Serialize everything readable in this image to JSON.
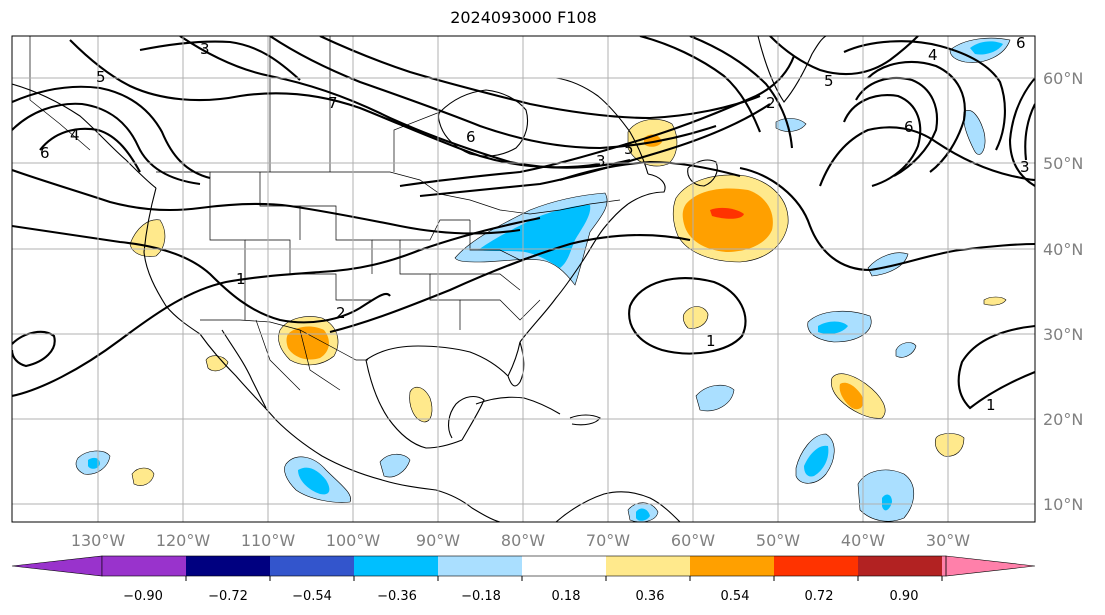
{
  "title": "2024093000 F108",
  "map": {
    "lon_labels": [
      "130°W",
      "120°W",
      "110°W",
      "100°W",
      "90°W",
      "80°W",
      "70°W",
      "60°W",
      "50°W",
      "40°W",
      "30°W"
    ],
    "lat_labels": [
      "60°N",
      "50°N",
      "40°N",
      "30°N",
      "20°N",
      "10°N"
    ],
    "contour_labels": [
      "3",
      "5",
      "6",
      "4",
      "6",
      "7",
      "6",
      "5",
      "3",
      "2",
      "4",
      "6",
      "1",
      "2",
      "3",
      "1",
      "1",
      "5"
    ],
    "gridline_color": "#b0b0b0"
  },
  "colorbar": {
    "colors": [
      "#9933cc",
      "#000080",
      "#3355cc",
      "#00bfff",
      "#aadfff",
      "#ffffff",
      "#ffe98c",
      "#ffa000",
      "#ff3300",
      "#b22222",
      "#ff80aa"
    ],
    "under_color": "#9933cc",
    "over_color": "#ff80aa",
    "tick_labels": [
      "−0.90",
      "−0.72",
      "−0.54",
      "−0.36",
      "−0.18",
      "0.18",
      "0.36",
      "0.54",
      "0.72",
      "0.90"
    ]
  }
}
